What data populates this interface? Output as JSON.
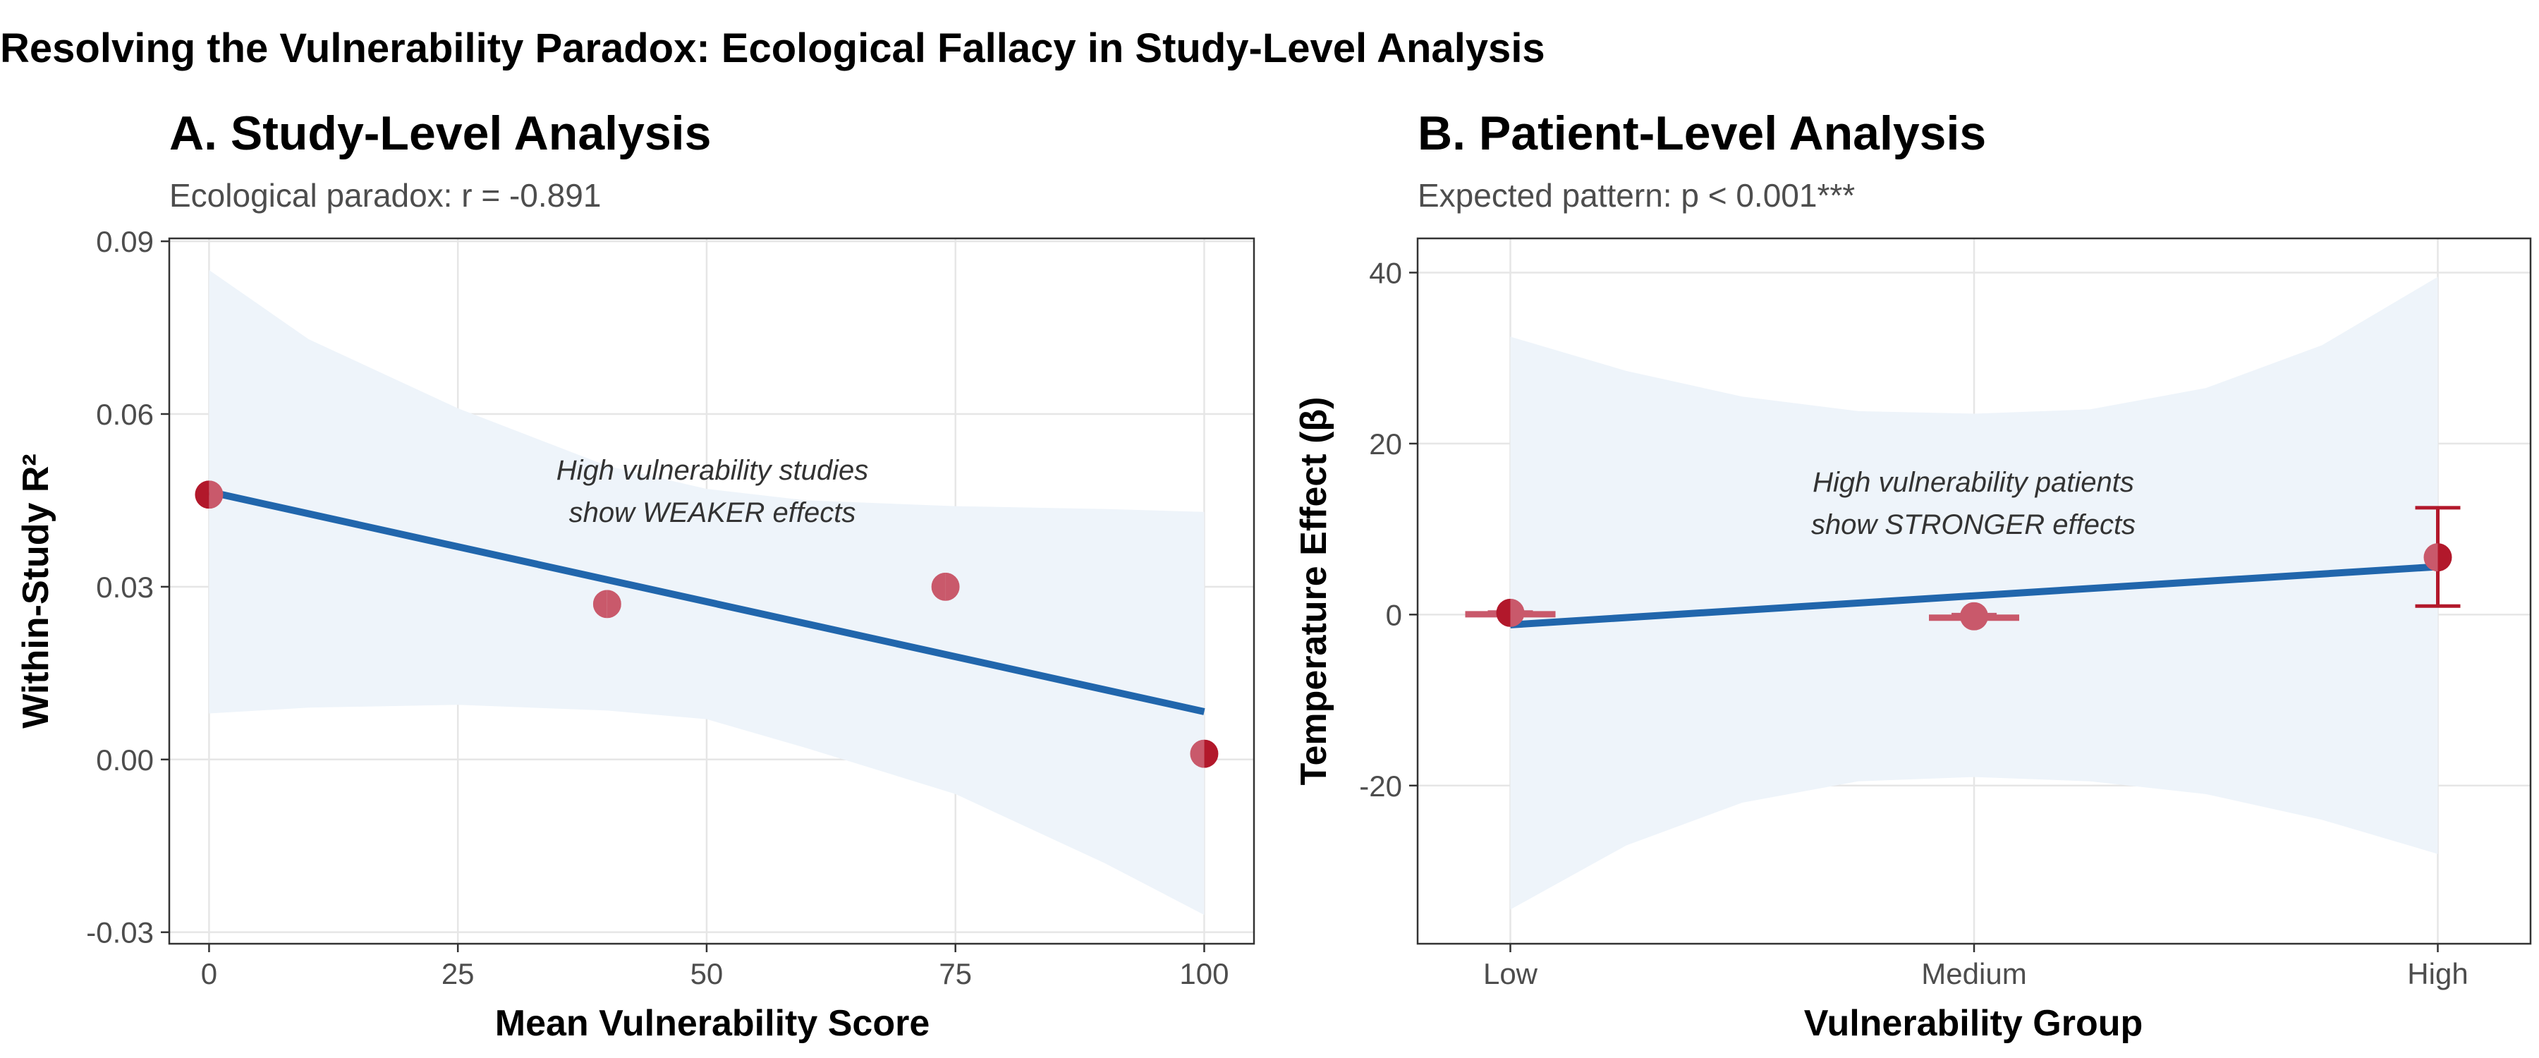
{
  "figure_title": "Resolving the Vulnerability Paradox: Ecological Fallacy in Study-Level Analysis",
  "colors": {
    "trend": "#2166ac",
    "band": "#eef4fa",
    "point_low": "#b2182b",
    "point_mid": "#c9596b",
    "point_mix": "#c55a6e",
    "frame": "#333333",
    "grid": "#e6e6e6"
  },
  "chart_data": [
    {
      "panel": "A",
      "type": "scatter",
      "title": "A. Study-Level Analysis",
      "subtitle": "Ecological paradox: r = -0.891",
      "xlabel": "Mean Vulnerability Score",
      "ylabel": "Within-Study R²",
      "xlim": [
        -4,
        105
      ],
      "ylim": [
        -0.032,
        0.0905
      ],
      "xticks": [
        0,
        25,
        50,
        75,
        100
      ],
      "xtick_labels": [
        "0",
        "25",
        "50",
        "75",
        "100"
      ],
      "yticks": [
        -0.03,
        0.0,
        0.03,
        0.06,
        0.09
      ],
      "ytick_labels": [
        "-0.03",
        "0.00",
        "0.03",
        "0.06",
        "0.09"
      ],
      "grid": true,
      "points": [
        {
          "x": 0,
          "y": 0.046
        },
        {
          "x": 40,
          "y": 0.027
        },
        {
          "x": 74,
          "y": 0.03
        },
        {
          "x": 100,
          "y": 0.001
        }
      ],
      "trend": {
        "x": [
          0,
          100
        ],
        "y": [
          0.0465,
          0.0083
        ]
      },
      "confidence_band": {
        "x": [
          0,
          10,
          25,
          40,
          50,
          60,
          75,
          90,
          100
        ],
        "upper": [
          0.085,
          0.073,
          0.061,
          0.051,
          0.047,
          0.045,
          0.044,
          0.0435,
          0.043
        ],
        "lower": [
          0.008,
          0.009,
          0.0095,
          0.0085,
          0.007,
          0.002,
          -0.006,
          -0.018,
          -0.027
        ]
      },
      "annotation": [
        "High vulnerability studies",
        "show WEAKER effects"
      ]
    },
    {
      "panel": "B",
      "type": "scatter",
      "title": "B. Patient-Level Analysis",
      "subtitle": "Expected pattern: p < 0.001***",
      "xlabel": "Vulnerability Group",
      "ylabel": "Temperature Effect (β)",
      "categories": [
        "Low",
        "Medium",
        "High"
      ],
      "xlim": [
        -0.2,
        2.2
      ],
      "ylim": [
        -38.5,
        44
      ],
      "yticks": [
        -20,
        0,
        20,
        40
      ],
      "ytick_labels": [
        "-20",
        "0",
        "20",
        "40"
      ],
      "grid": true,
      "points": [
        {
          "x": 0,
          "y": 0.2,
          "ylow": 0.0,
          "yhigh": 0.3
        },
        {
          "x": 1,
          "y": -0.2,
          "ylow": -0.4,
          "yhigh": 0.0
        },
        {
          "x": 2,
          "y": 6.7,
          "ylow": 1.0,
          "yhigh": 12.5
        }
      ],
      "trend": {
        "x": [
          0,
          2
        ],
        "y": [
          -1.2,
          5.6
        ]
      },
      "confidence_band": {
        "x": [
          0,
          0.25,
          0.5,
          0.75,
          1.0,
          1.25,
          1.5,
          1.75,
          2.0
        ],
        "upper": [
          32.5,
          28.5,
          25.5,
          23.8,
          23.5,
          24.0,
          26.5,
          31.5,
          39.5
        ],
        "lower": [
          -34.5,
          -27.0,
          -22.0,
          -19.5,
          -19.0,
          -19.5,
          -21.0,
          -24.0,
          -28.0
        ]
      },
      "annotation": [
        "High vulnerability patients",
        "show STRONGER effects"
      ]
    }
  ]
}
